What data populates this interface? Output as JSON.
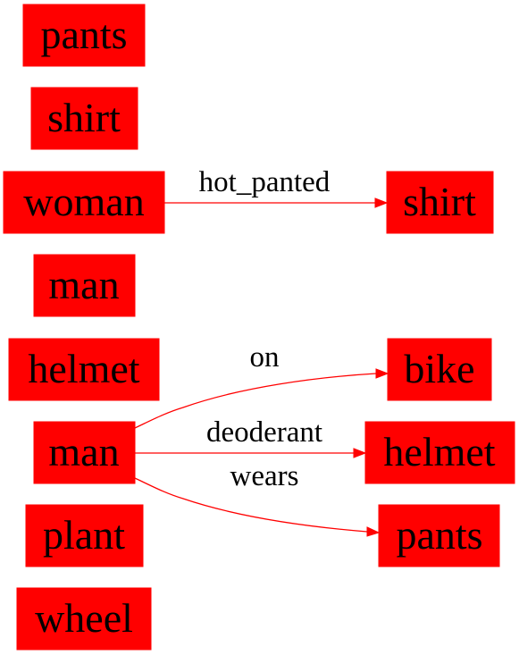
{
  "graph": {
    "node_color": "#ff0000",
    "edge_color": "#ff0000",
    "text_color": "#000000",
    "nodes": [
      {
        "id": "n1",
        "label": "pants"
      },
      {
        "id": "n2",
        "label": "shirt"
      },
      {
        "id": "n3",
        "label": "woman"
      },
      {
        "id": "n4",
        "label": "man"
      },
      {
        "id": "n5",
        "label": "helmet"
      },
      {
        "id": "n6",
        "label": "man"
      },
      {
        "id": "n7",
        "label": "plant"
      },
      {
        "id": "n8",
        "label": "wheel"
      },
      {
        "id": "n9",
        "label": "shirt"
      },
      {
        "id": "n10",
        "label": "bike"
      },
      {
        "id": "n11",
        "label": "helmet"
      },
      {
        "id": "n12",
        "label": "pants"
      }
    ],
    "edges": [
      {
        "from": "n3",
        "to": "n9",
        "label": "hot_panted"
      },
      {
        "from": "n6",
        "to": "n10",
        "label": "on"
      },
      {
        "from": "n6",
        "to": "n11",
        "label": "deoderant"
      },
      {
        "from": "n6",
        "to": "n12",
        "label": "wears"
      }
    ]
  }
}
